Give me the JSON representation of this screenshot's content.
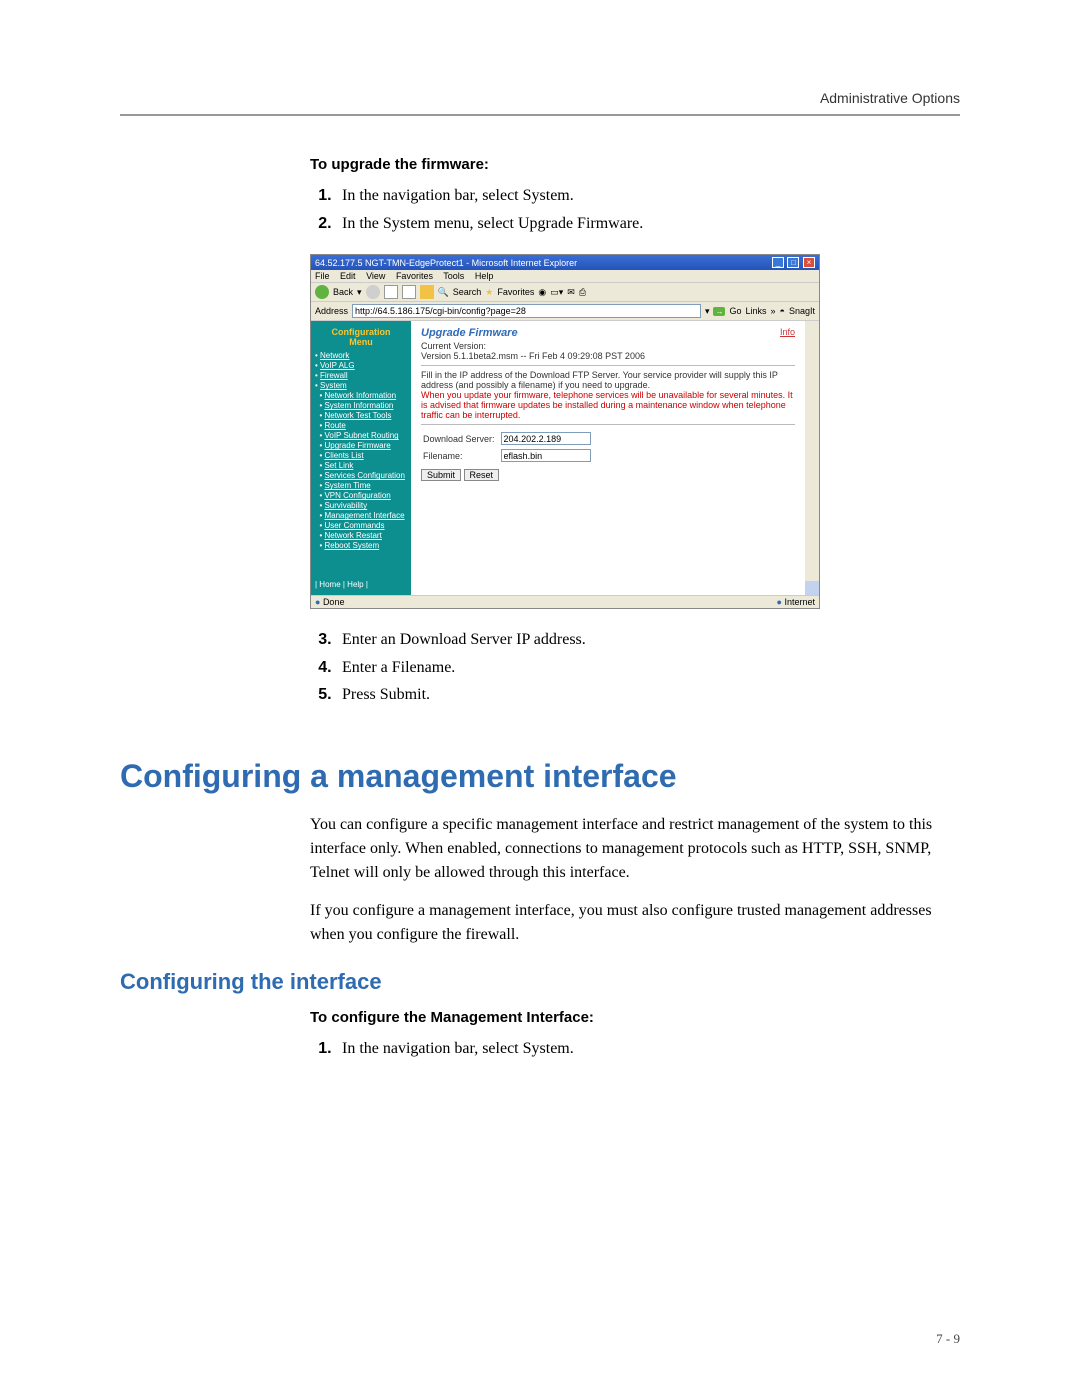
{
  "header": {
    "right": "Administrative Options"
  },
  "upgrade": {
    "heading": "To upgrade the firmware:",
    "steps_a": [
      "In the navigation bar, select System.",
      "In the System menu, select Upgrade Firmware."
    ],
    "steps_b": [
      "Enter an Download Server IP address.",
      "Enter a Filename.",
      "Press Submit."
    ]
  },
  "shot": {
    "title": "64.52.177.5 NGT-TMN-EdgeProtect1 - Microsoft Internet Explorer",
    "menu": [
      "File",
      "Edit",
      "View",
      "Favorites",
      "Tools",
      "Help"
    ],
    "back": "Back",
    "search": "Search",
    "fav": "Favorites",
    "addr_label": "Address",
    "addr_value": "http://64.5.186.175/cgi-bin/config?page=28",
    "go": "Go",
    "links": "Links",
    "snagit": "SnagIt",
    "sidebar": {
      "title1": "Configuration",
      "title2": "Menu",
      "items": [
        {
          "t": "Network",
          "cls": ""
        },
        {
          "t": "VoIP ALG",
          "cls": ""
        },
        {
          "t": "Firewall",
          "cls": ""
        },
        {
          "t": "System",
          "cls": ""
        },
        {
          "t": "Network Information",
          "cls": "sub"
        },
        {
          "t": "System Information",
          "cls": "sub"
        },
        {
          "t": "Network Test Tools",
          "cls": "sub"
        },
        {
          "t": "Route",
          "cls": "sub"
        },
        {
          "t": "VoIP Subnet Routing",
          "cls": "sub"
        },
        {
          "t": "Upgrade Firmware",
          "cls": "sub"
        },
        {
          "t": "Clients List",
          "cls": "sub"
        },
        {
          "t": "Set Link",
          "cls": "sub"
        },
        {
          "t": "Services Configuration",
          "cls": "sub"
        },
        {
          "t": "System Time",
          "cls": "sub"
        },
        {
          "t": "VPN Configuration",
          "cls": "sub"
        },
        {
          "t": "Survivability",
          "cls": "sub"
        },
        {
          "t": "Management Interface",
          "cls": "sub"
        },
        {
          "t": "User Commands",
          "cls": "sub"
        },
        {
          "t": "Network Restart",
          "cls": "sub"
        },
        {
          "t": "Reboot System",
          "cls": "sub"
        }
      ],
      "footer": "| Home | Help |"
    },
    "main": {
      "info": "Info",
      "title": "Upgrade Firmware",
      "curver_label": "Current Version:",
      "curver": "Version 5.1.1beta2.msm -- Fri Feb 4 09:29:08 PST 2006",
      "instr": "Fill in the IP address of the Download FTP Server. Your service provider will supply this IP address (and possibly a filename) if you need to upgrade.",
      "warn": "When you update your firmware, telephone services will be unavailable for several minutes. It is advised that firmware updates be installed during a maintenance window when telephone traffic can be interrupted.",
      "dl_label": "Download Server:",
      "dl_value": "204.202.2.189",
      "fn_label": "Filename:",
      "fn_value": "eflash.bin",
      "submit": "Submit",
      "reset": "Reset"
    },
    "status": {
      "done": "Done",
      "net": "Internet"
    }
  },
  "section2": {
    "h1": "Configuring a management interface",
    "p1": "You can configure a specific management interface and restrict management of the system to this interface only. When enabled, connections to management protocols such as HTTP, SSH, SNMP, Telnet will only be allowed through this interface.",
    "p2": "If you configure a management interface, you must also configure trusted management addresses when you configure the firewall.",
    "h2": "Configuring the interface",
    "sub": "To configure the Management Interface:",
    "step": "In the navigation bar, select System."
  },
  "footer": "7 - 9",
  "colors": {
    "heading_blue": "#2e6bb0",
    "sidebar_teal": "#0d8f8f",
    "ie_blue": "#2554b8",
    "warn_red": "#c00"
  }
}
